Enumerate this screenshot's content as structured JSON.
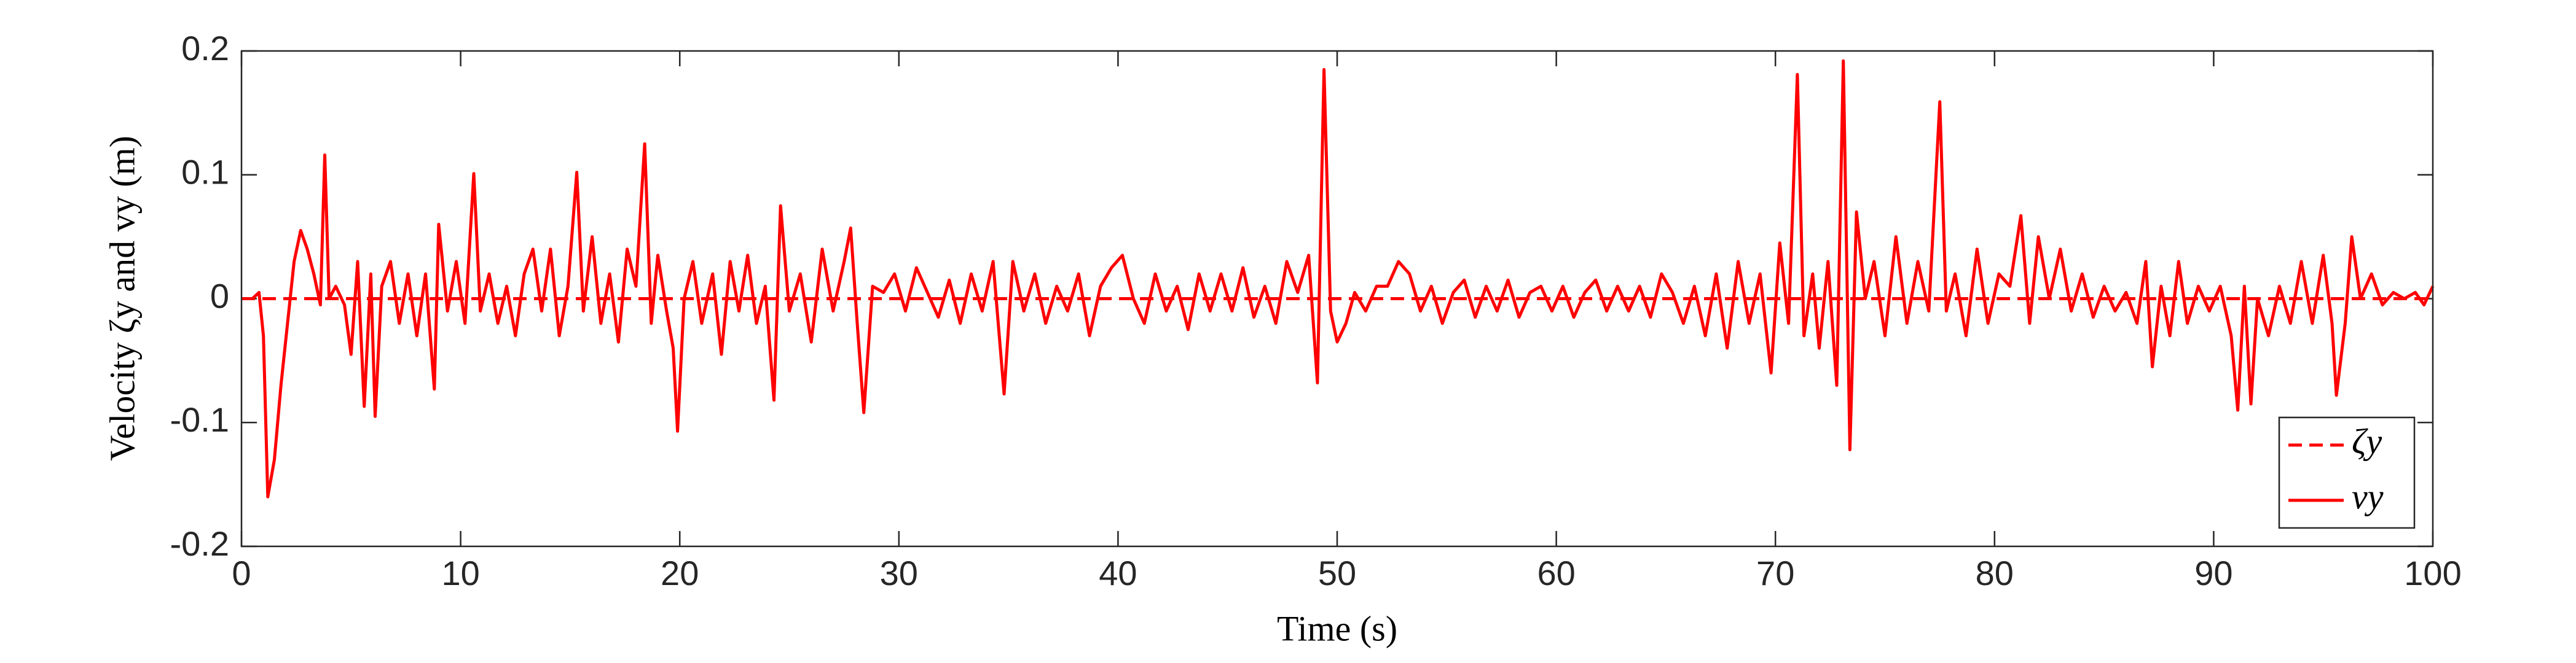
{
  "chart_data": {
    "type": "line",
    "xlabel": "Time (s)",
    "ylabel": "Velocity ζy and vy (m)",
    "xlim": [
      0,
      100
    ],
    "xticks": [
      0,
      10,
      20,
      30,
      40,
      50,
      60,
      70,
      80,
      90,
      100
    ],
    "ylim": [
      -0.2,
      0.2
    ],
    "yticks": [
      -0.2,
      -0.1,
      0,
      0.1,
      0.2
    ],
    "legend": "southeast",
    "series": [
      {
        "name": "ζy",
        "color": "#ff0000",
        "dash": true,
        "x": [
          0,
          100
        ],
        "values": [
          0,
          0
        ]
      },
      {
        "name": "vy",
        "color": "#ff0000",
        "dash": false,
        "x": [
          0,
          0.5,
          0.8,
          1.0,
          1.2,
          1.5,
          1.8,
          2.1,
          2.4,
          2.7,
          3.0,
          3.3,
          3.6,
          3.8,
          4.0,
          4.3,
          4.7,
          5.0,
          5.3,
          5.6,
          5.9,
          6.1,
          6.4,
          6.8,
          7.2,
          7.6,
          8.0,
          8.4,
          8.8,
          9.0,
          9.4,
          9.8,
          10.2,
          10.6,
          10.9,
          11.3,
          11.7,
          12.1,
          12.5,
          12.9,
          13.3,
          13.7,
          14.1,
          14.5,
          14.9,
          15.3,
          15.6,
          16.0,
          16.4,
          16.8,
          17.2,
          17.6,
          18.0,
          18.4,
          18.7,
          19.0,
          19.4,
          19.7,
          19.9,
          20.2,
          20.6,
          21.0,
          21.5,
          21.9,
          22.3,
          22.7,
          23.1,
          23.5,
          23.9,
          24.3,
          24.6,
          25.0,
          25.5,
          26.0,
          26.5,
          27.0,
          27.5,
          27.8,
          28.1,
          28.4,
          28.8,
          29.3,
          29.8,
          30.3,
          30.8,
          31.3,
          31.8,
          32.3,
          32.8,
          33.3,
          33.8,
          34.3,
          34.8,
          35.2,
          35.7,
          36.2,
          36.7,
          37.2,
          37.7,
          38.2,
          38.7,
          39.2,
          39.7,
          40.2,
          40.7,
          41.2,
          41.7,
          42.2,
          42.7,
          43.2,
          43.7,
          44.2,
          44.7,
          45.2,
          45.7,
          46.2,
          46.7,
          47.2,
          47.7,
          48.2,
          48.7,
          49.1,
          49.4,
          49.7,
          50.0,
          50.4,
          50.8,
          51.3,
          51.8,
          52.3,
          52.8,
          53.3,
          53.8,
          54.3,
          54.8,
          55.3,
          55.8,
          56.3,
          56.8,
          57.3,
          57.8,
          58.3,
          58.8,
          59.3,
          59.8,
          60.3,
          60.8,
          61.3,
          61.8,
          62.3,
          62.8,
          63.3,
          63.8,
          64.3,
          64.8,
          65.3,
          65.8,
          66.3,
          66.8,
          67.3,
          67.8,
          68.3,
          68.8,
          69.3,
          69.8,
          70.2,
          70.6,
          71.0,
          71.3,
          71.7,
          72.0,
          72.4,
          72.8,
          73.1,
          73.4,
          73.7,
          74.1,
          74.5,
          75.0,
          75.5,
          76.0,
          76.5,
          77.0,
          77.5,
          77.8,
          78.2,
          78.7,
          79.2,
          79.7,
          80.2,
          80.7,
          81.2,
          81.6,
          82.0,
          82.5,
          83.0,
          83.5,
          84.0,
          84.5,
          85.0,
          85.5,
          86.0,
          86.5,
          86.9,
          87.2,
          87.6,
          88.0,
          88.4,
          88.8,
          89.3,
          89.8,
          90.3,
          90.8,
          91.1,
          91.4,
          91.7,
          92.0,
          92.5,
          93.0,
          93.5,
          94.0,
          94.5,
          95.0,
          95.4,
          95.6,
          96.0,
          96.3,
          96.7,
          97.2,
          97.7,
          98.2,
          98.7,
          99.2,
          99.6,
          100
        ],
        "values": [
          0,
          0,
          0.005,
          -0.03,
          -0.16,
          -0.13,
          -0.07,
          -0.02,
          0.03,
          0.055,
          0.04,
          0.02,
          -0.005,
          0.116,
          0,
          0.01,
          -0.005,
          -0.045,
          0.03,
          -0.087,
          0.02,
          -0.095,
          0.01,
          0.03,
          -0.02,
          0.02,
          -0.03,
          0.02,
          -0.073,
          0.06,
          -0.01,
          0.03,
          -0.02,
          0.101,
          -0.01,
          0.02,
          -0.02,
          0.01,
          -0.03,
          0.02,
          0.04,
          -0.01,
          0.04,
          -0.03,
          0.01,
          0.102,
          -0.01,
          0.05,
          -0.02,
          0.02,
          -0.035,
          0.04,
          0.01,
          0.125,
          -0.02,
          0.035,
          -0.01,
          -0.04,
          -0.107,
          0,
          0.03,
          -0.02,
          0.02,
          -0.045,
          0.03,
          -0.01,
          0.035,
          -0.02,
          0.01,
          -0.082,
          0.075,
          -0.01,
          0.02,
          -0.035,
          0.04,
          -0.01,
          0.03,
          0.057,
          -0.02,
          -0.092,
          0.01,
          0.005,
          0.02,
          -0.01,
          0.025,
          0.005,
          -0.015,
          0.015,
          -0.02,
          0.02,
          -0.01,
          0.03,
          -0.077,
          0.03,
          -0.01,
          0.02,
          -0.02,
          0.01,
          -0.01,
          0.02,
          -0.03,
          0.01,
          0.025,
          0.035,
          0,
          -0.02,
          0.02,
          -0.01,
          0.01,
          -0.025,
          0.02,
          -0.01,
          0.02,
          -0.01,
          0.025,
          -0.015,
          0.01,
          -0.02,
          0.03,
          0.005,
          0.035,
          -0.068,
          0.185,
          -0.01,
          -0.035,
          -0.02,
          0.005,
          -0.01,
          0.01,
          0.01,
          0.03,
          0.02,
          -0.01,
          0.01,
          -0.02,
          0.005,
          0.015,
          -0.015,
          0.01,
          -0.01,
          0.015,
          -0.015,
          0.005,
          0.01,
          -0.01,
          0.01,
          -0.015,
          0.005,
          0.015,
          -0.01,
          0.01,
          -0.01,
          0.01,
          -0.015,
          0.02,
          0.005,
          -0.02,
          0.01,
          -0.03,
          0.02,
          -0.04,
          0.03,
          -0.02,
          0.02,
          -0.06,
          0.045,
          -0.02,
          0.181,
          -0.03,
          0.02,
          -0.04,
          0.03,
          -0.07,
          0.192,
          -0.122,
          0.07,
          0,
          0.03,
          -0.03,
          0.05,
          -0.02,
          0.03,
          -0.01,
          0.159,
          -0.01,
          0.02,
          -0.03,
          0.04,
          -0.02,
          0.02,
          0.01,
          0.067,
          -0.02,
          0.05,
          0,
          0.04,
          -0.01,
          0.02,
          -0.015,
          0.01,
          -0.01,
          0.005,
          -0.02,
          0.03,
          -0.055,
          0.01,
          -0.03,
          0.03,
          -0.02,
          0.01,
          -0.01,
          0.01,
          -0.03,
          -0.09,
          0.01,
          -0.085,
          0,
          -0.03,
          0.01,
          -0.02,
          0.03,
          -0.02,
          0.035,
          -0.02,
          -0.078,
          -0.02,
          0.05,
          0,
          0.02,
          -0.005,
          0.005,
          0,
          0.005,
          -0.005,
          0.01
        ]
      }
    ]
  }
}
